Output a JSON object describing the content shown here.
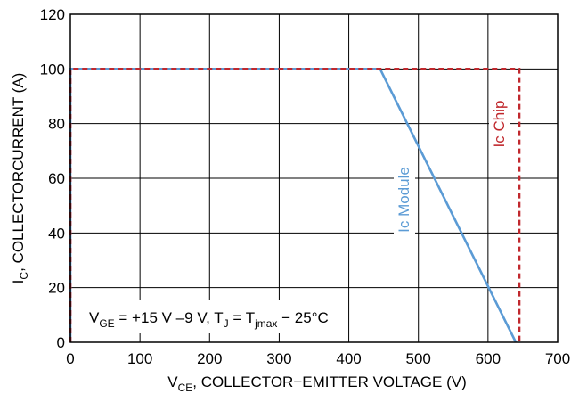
{
  "chart_data": {
    "type": "line",
    "x_ticks": [
      "0",
      "100",
      "200",
      "300",
      "400",
      "500",
      "600",
      "700"
    ],
    "y_ticks": [
      "0",
      "20",
      "40",
      "60",
      "80",
      "100",
      "120"
    ],
    "xlim": [
      0,
      700
    ],
    "ylim": [
      0,
      120
    ],
    "grid": true,
    "xlabel": {
      "pre": "V",
      "sub": "CE",
      "post": ", COLLECTOR−EMITTER VOLTAGE (V)"
    },
    "ylabel": {
      "pre": "I",
      "sub": "C",
      "post": ", COLLECTORCURRENT (A)"
    },
    "condition": {
      "p1": "V",
      "s1": "GE",
      "p2": " = +15 V –9 V, T",
      "s2": "J",
      "p3": " = T",
      "s3": "jmax",
      "p4": " − 25°C"
    },
    "series": [
      {
        "name": "Ic Chip",
        "color": "#c0282d",
        "style": "dashed",
        "points": [
          [
            0,
            0
          ],
          [
            0,
            100
          ],
          [
            645,
            100
          ],
          [
            645,
            0
          ]
        ]
      },
      {
        "name": "Ic Module",
        "color": "#5b9bd5",
        "style": "solid",
        "points": [
          [
            0,
            0
          ],
          [
            0,
            100
          ],
          [
            445,
            100
          ],
          [
            640,
            0
          ]
        ]
      }
    ]
  }
}
